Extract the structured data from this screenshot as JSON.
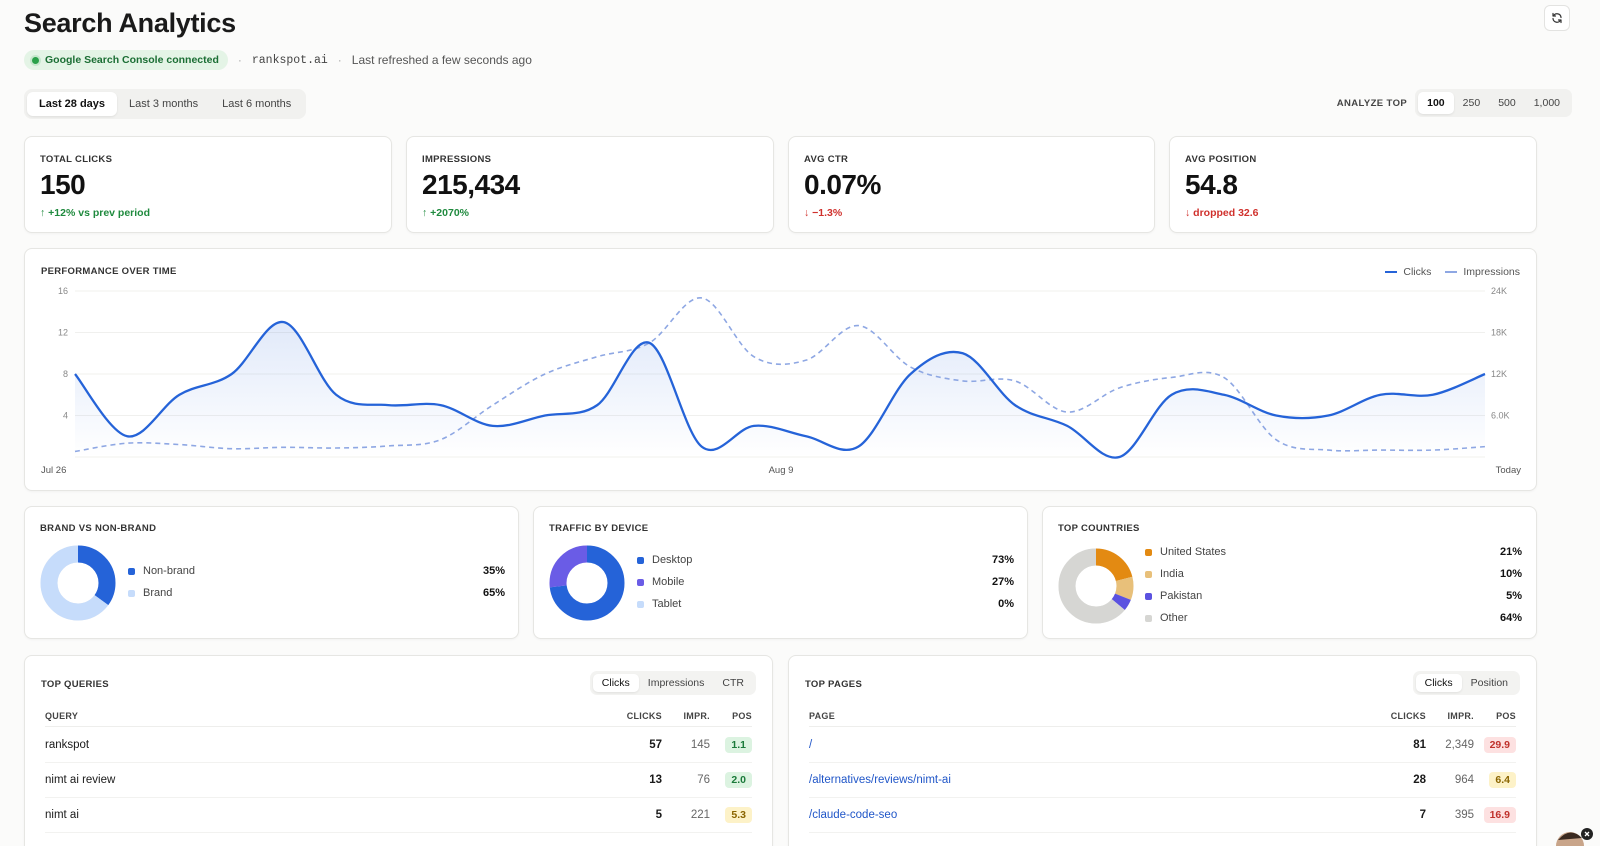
{
  "header": {
    "title": "Search Analytics",
    "gsc_status": "Google Search Console connected",
    "domain": "rankspot.ai",
    "refreshed": "Last refreshed a few seconds ago",
    "separator": "·"
  },
  "range_tabs": [
    "Last 28 days",
    "Last 3 months",
    "Last 6 months"
  ],
  "range_active": 0,
  "analyze": {
    "label": "ANALYZE TOP",
    "options": [
      "100",
      "250",
      "500",
      "1,000"
    ],
    "active": 0
  },
  "kpis": [
    {
      "label": "TOTAL CLICKS",
      "value": "150",
      "delta": "↑ +12% vs prev period",
      "trend": "up"
    },
    {
      "label": "IMPRESSIONS",
      "value": "215,434",
      "delta": "↑ +2070%",
      "trend": "up"
    },
    {
      "label": "AVG CTR",
      "value": "0.07%",
      "delta": "↓ −1.3%",
      "trend": "down"
    },
    {
      "label": "AVG POSITION",
      "value": "54.8",
      "delta": "↓ dropped 32.6",
      "trend": "down"
    }
  ],
  "performance": {
    "title": "PERFORMANCE OVER TIME",
    "legend_clicks": "Clicks",
    "legend_impressions": "Impressions"
  },
  "chart_data": {
    "type": "line",
    "title": "PERFORMANCE OVER TIME",
    "x_tick_labels": [
      "Jul 26",
      "Aug 9",
      "Today"
    ],
    "y_left_ticks": [
      "16",
      "12",
      "8",
      "4"
    ],
    "y_right_ticks": [
      "24K",
      "18K",
      "12K",
      "6.0K"
    ],
    "ylim_left": [
      0,
      16
    ],
    "ylim_right": [
      0,
      24000
    ],
    "series": [
      {
        "name": "Clicks",
        "axis": "left",
        "style": "solid",
        "color": "#2563d8",
        "values": [
          8,
          2,
          6,
          8,
          13,
          6,
          5,
          5,
          3,
          4,
          5,
          11,
          1,
          3,
          2,
          1,
          8,
          10,
          5,
          3,
          0,
          6,
          6,
          4,
          4,
          6,
          6,
          8
        ]
      },
      {
        "name": "Impressions",
        "axis": "right",
        "style": "dashed",
        "color": "#8ea7e3",
        "values": [
          800,
          2000,
          1800,
          1200,
          1400,
          1300,
          1600,
          2500,
          7500,
          12000,
          14500,
          16500,
          23000,
          14500,
          14000,
          19000,
          13000,
          11000,
          11000,
          6500,
          10000,
          11500,
          11500,
          2500,
          1000,
          1000,
          1000,
          1500
        ]
      }
    ]
  },
  "brand": {
    "title": "BRAND VS NON-BRAND",
    "items": [
      {
        "label": "Non-brand",
        "pct": "35%",
        "value": 35,
        "color": "#2563d8"
      },
      {
        "label": "Brand",
        "pct": "65%",
        "value": 65,
        "color": "#c6dcfb"
      }
    ]
  },
  "device": {
    "title": "TRAFFIC BY DEVICE",
    "items": [
      {
        "label": "Desktop",
        "pct": "73%",
        "value": 73,
        "color": "#2563d8"
      },
      {
        "label": "Mobile",
        "pct": "27%",
        "value": 27,
        "color": "#6a5ce6"
      },
      {
        "label": "Tablet",
        "pct": "0%",
        "value": 0,
        "color": "#c6dcfb"
      }
    ]
  },
  "countries": {
    "title": "TOP COUNTRIES",
    "items": [
      {
        "label": "United States",
        "pct": "21%",
        "value": 21,
        "color": "#e38a12"
      },
      {
        "label": "India",
        "pct": "10%",
        "value": 10,
        "color": "#e8c07a"
      },
      {
        "label": "Pakistan",
        "pct": "5%",
        "value": 5,
        "color": "#5b52e0"
      },
      {
        "label": "Other",
        "pct": "64%",
        "value": 64,
        "color": "#d6d6d3"
      }
    ]
  },
  "queries": {
    "title": "TOP QUERIES",
    "tabs": [
      "Clicks",
      "Impressions",
      "CTR"
    ],
    "active_tab": 0,
    "columns": {
      "query": "QUERY",
      "clicks": "CLICKS",
      "impr": "IMPR.",
      "pos": "POS"
    },
    "rows": [
      {
        "query": "rankspot",
        "clicks": "57",
        "impr": "145",
        "pos": "1.1",
        "tone": "green"
      },
      {
        "query": "nimt ai review",
        "clicks": "13",
        "impr": "76",
        "pos": "2.0",
        "tone": "green"
      },
      {
        "query": "nimt ai",
        "clicks": "5",
        "impr": "221",
        "pos": "5.3",
        "tone": "yellow"
      }
    ]
  },
  "pages": {
    "title": "TOP PAGES",
    "tabs": [
      "Clicks",
      "Position"
    ],
    "active_tab": 0,
    "columns": {
      "page": "PAGE",
      "clicks": "CLICKS",
      "impr": "IMPR.",
      "pos": "POS"
    },
    "rows": [
      {
        "page": "/",
        "clicks": "81",
        "impr": "2,349",
        "pos": "29.9",
        "tone": "red"
      },
      {
        "page": "/alternatives/reviews/nimt-ai",
        "clicks": "28",
        "impr": "964",
        "pos": "6.4",
        "tone": "yellow"
      },
      {
        "page": "/claude-code-seo",
        "clicks": "7",
        "impr": "395",
        "pos": "16.9",
        "tone": "red"
      }
    ]
  }
}
